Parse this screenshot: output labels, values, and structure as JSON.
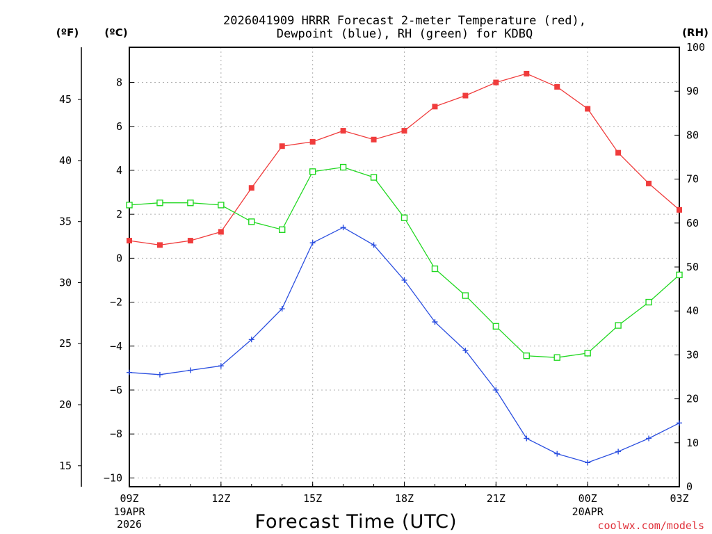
{
  "chart_data": {
    "type": "line",
    "title": "2026041909 HRRR Forecast 2-meter Temperature (red),",
    "subtitle": "Dewpoint (blue), RH (green) for KDBQ",
    "xlabel": "Forecast Time (UTC)",
    "credit": "coolwx.com/models",
    "units": {
      "fahrenheit": "(ºF)",
      "celsius": "(ºC)",
      "rh": "(RH)"
    },
    "x_hours": [
      0,
      1,
      2,
      3,
      4,
      5,
      6,
      7,
      8,
      9,
      10,
      11,
      12,
      13,
      14,
      15,
      16,
      17,
      18
    ],
    "xlim": [
      0,
      18
    ],
    "x_ticks": [
      {
        "h": 0,
        "label": "09Z",
        "sub1": "19APR",
        "sub2": "2026"
      },
      {
        "h": 3,
        "label": "12Z",
        "sub1": "",
        "sub2": ""
      },
      {
        "h": 6,
        "label": "15Z",
        "sub1": "",
        "sub2": ""
      },
      {
        "h": 9,
        "label": "18Z",
        "sub1": "",
        "sub2": ""
      },
      {
        "h": 12,
        "label": "21Z",
        "sub1": "",
        "sub2": ""
      },
      {
        "h": 15,
        "label": "00Z",
        "sub1": "20APR",
        "sub2": ""
      },
      {
        "h": 18,
        "label": "03Z",
        "sub1": "",
        "sub2": ""
      }
    ],
    "celsius_axis": {
      "range": [
        -10.4,
        9.6
      ],
      "ticks": [
        8,
        6,
        4,
        2,
        0,
        -2,
        -4,
        -6,
        -8,
        -10
      ],
      "labels": [
        "8",
        "6",
        "4",
        "2",
        "0",
        "−2",
        "−4",
        "−6",
        "−8",
        "−10"
      ]
    },
    "fahrenheit_axis": {
      "ticks": [
        45,
        40,
        35,
        30,
        25,
        20,
        15
      ],
      "labels": [
        "45",
        "40",
        "35",
        "30",
        "25",
        "20",
        "15"
      ]
    },
    "rh_axis": {
      "range": [
        0,
        100
      ],
      "ticks": [
        100,
        90,
        80,
        70,
        60,
        50,
        40,
        30,
        20,
        10,
        0
      ],
      "labels": [
        "100",
        "90",
        "80",
        "70",
        "60",
        "50",
        "40",
        "30",
        "20",
        "10",
        "0"
      ]
    },
    "series": [
      {
        "name": "Temperature",
        "unit": "C",
        "color": "#f03c3c",
        "marker": "filled-square",
        "values": [
          0.8,
          0.6,
          0.8,
          1.2,
          3.2,
          5.1,
          5.3,
          5.8,
          5.4,
          5.8,
          6.9,
          7.4,
          8.0,
          8.4,
          7.8,
          6.8,
          4.8,
          3.4,
          2.2
        ]
      },
      {
        "name": "Dewpoint",
        "unit": "C",
        "color": "#2b4fe0",
        "marker": "plus",
        "values": [
          -5.2,
          -5.3,
          -5.1,
          -4.9,
          -3.7,
          -2.3,
          0.7,
          1.4,
          0.6,
          -1.0,
          -2.9,
          -4.2,
          -6.0,
          -8.2,
          -8.9,
          -9.3,
          -8.8,
          -8.2,
          -7.5
        ]
      },
      {
        "name": "Relative Humidity",
        "unit": "RH",
        "color": "#22d822",
        "marker": "open-square",
        "values": [
          64.1,
          64.6,
          64.6,
          64.1,
          60.3,
          58.5,
          71.7,
          72.7,
          70.4,
          61.2,
          49.6,
          43.5,
          36.5,
          29.8,
          29.4,
          30.4,
          36.7,
          42.0,
          48.2
        ]
      }
    ]
  }
}
